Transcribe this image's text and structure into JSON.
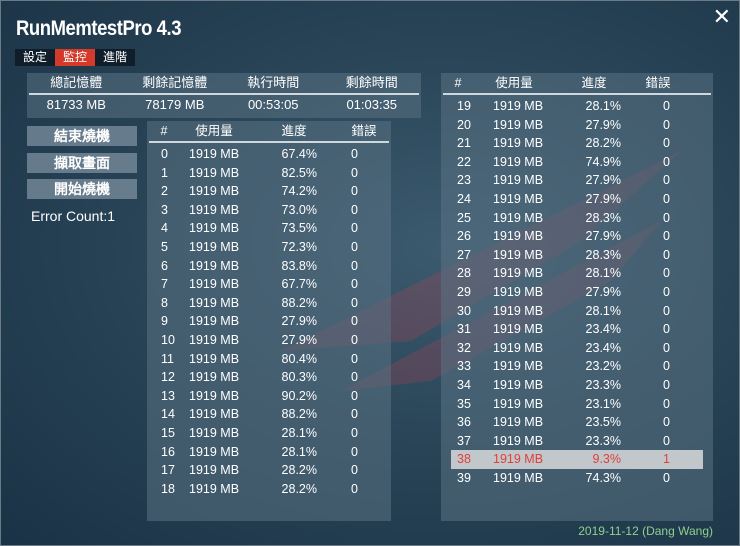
{
  "title": "RunMemtestPro 4.3",
  "tabs": [
    {
      "label": "設定"
    },
    {
      "label": "監控"
    },
    {
      "label": "進階"
    }
  ],
  "summary": {
    "headers": [
      "總記憶體",
      "剩餘記憶體",
      "執行時間",
      "剩餘時間"
    ],
    "values": [
      "81733 MB",
      "78179 MB",
      "00:53:05",
      "01:03:35"
    ]
  },
  "buttons": {
    "stop": "結束燒機",
    "capture": "擷取畫面",
    "start": "開始燒機"
  },
  "error_count": "Error Count:1",
  "table_headers": [
    "#",
    "使用量",
    "進度",
    "錯誤"
  ],
  "rows": [
    [
      "0",
      "1919 MB",
      "67.4%",
      "0"
    ],
    [
      "1",
      "1919 MB",
      "82.5%",
      "0"
    ],
    [
      "2",
      "1919 MB",
      "74.2%",
      "0"
    ],
    [
      "3",
      "1919 MB",
      "73.0%",
      "0"
    ],
    [
      "4",
      "1919 MB",
      "73.5%",
      "0"
    ],
    [
      "5",
      "1919 MB",
      "72.3%",
      "0"
    ],
    [
      "6",
      "1919 MB",
      "83.8%",
      "0"
    ],
    [
      "7",
      "1919 MB",
      "67.7%",
      "0"
    ],
    [
      "8",
      "1919 MB",
      "88.2%",
      "0"
    ],
    [
      "9",
      "1919 MB",
      "27.9%",
      "0"
    ],
    [
      "10",
      "1919 MB",
      "27.9%",
      "0"
    ],
    [
      "11",
      "1919 MB",
      "80.4%",
      "0"
    ],
    [
      "12",
      "1919 MB",
      "80.3%",
      "0"
    ],
    [
      "13",
      "1919 MB",
      "90.2%",
      "0"
    ],
    [
      "14",
      "1919 MB",
      "88.2%",
      "0"
    ],
    [
      "15",
      "1919 MB",
      "28.1%",
      "0"
    ],
    [
      "16",
      "1919 MB",
      "28.1%",
      "0"
    ],
    [
      "17",
      "1919 MB",
      "28.2%",
      "0"
    ],
    [
      "18",
      "1919 MB",
      "28.2%",
      "0"
    ],
    [
      "19",
      "1919 MB",
      "28.1%",
      "0"
    ],
    [
      "20",
      "1919 MB",
      "27.9%",
      "0"
    ],
    [
      "21",
      "1919 MB",
      "28.2%",
      "0"
    ],
    [
      "22",
      "1919 MB",
      "74.9%",
      "0"
    ],
    [
      "23",
      "1919 MB",
      "27.9%",
      "0"
    ],
    [
      "24",
      "1919 MB",
      "27.9%",
      "0"
    ],
    [
      "25",
      "1919 MB",
      "28.3%",
      "0"
    ],
    [
      "26",
      "1919 MB",
      "27.9%",
      "0"
    ],
    [
      "27",
      "1919 MB",
      "28.3%",
      "0"
    ],
    [
      "28",
      "1919 MB",
      "28.1%",
      "0"
    ],
    [
      "29",
      "1919 MB",
      "27.9%",
      "0"
    ],
    [
      "30",
      "1919 MB",
      "28.1%",
      "0"
    ],
    [
      "31",
      "1919 MB",
      "23.4%",
      "0"
    ],
    [
      "32",
      "1919 MB",
      "23.4%",
      "0"
    ],
    [
      "33",
      "1919 MB",
      "23.2%",
      "0"
    ],
    [
      "34",
      "1919 MB",
      "23.3%",
      "0"
    ],
    [
      "35",
      "1919 MB",
      "23.1%",
      "0"
    ],
    [
      "36",
      "1919 MB",
      "23.5%",
      "0"
    ],
    [
      "37",
      "1919 MB",
      "23.3%",
      "0"
    ],
    [
      "38",
      "1919 MB",
      "9.3%",
      "1"
    ],
    [
      "39",
      "1919 MB",
      "74.3%",
      "0"
    ]
  ],
  "footer": "2019-11-12 (Dang Wang)",
  "colors": {
    "accent": "#d33a2a",
    "error_text": "#e0403a",
    "footer": "#8ed08e"
  }
}
